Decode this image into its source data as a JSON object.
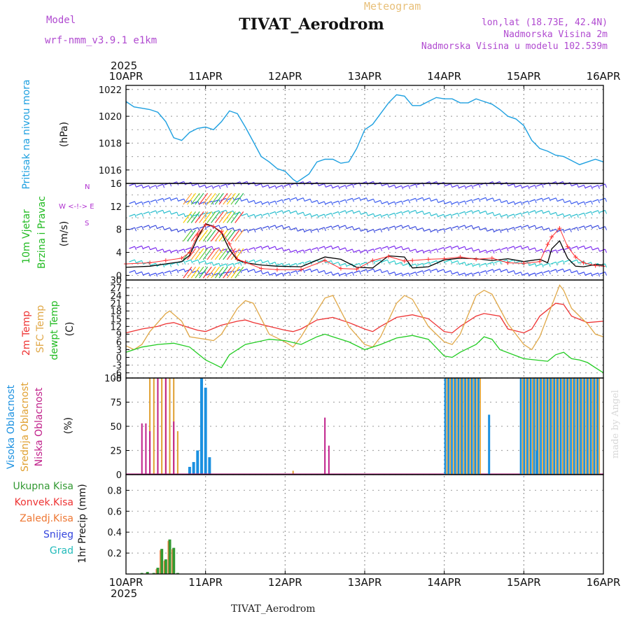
{
  "header": {
    "title": "TIVAT_Aerodrom",
    "subtitle": "Meteogram",
    "model_label": "Model",
    "model_name": "wrf-nmm_v3.9.1 e1km",
    "lonlat": "lon,lat (18.73E, 42.4N)",
    "elevation": "Nadmorska Visina 2m",
    "model_elevation": "Nadmorska Visina u modelu 102.539m",
    "footer": "TIVAT_Aerodrom",
    "credit": "made by Angel"
  },
  "time_axis": {
    "year": "2025",
    "labels": [
      "10APR",
      "11APR",
      "12APR",
      "13APR",
      "14APR",
      "15APR",
      "16APR"
    ]
  },
  "colors": {
    "pressure": "#1ea0e0",
    "wind_speed": "#000000",
    "gust": "#ff3030",
    "temp2m": "#ee3333",
    "sfc_temp": "#e0a848",
    "dewpoint": "#22cc22",
    "cloud_high": "#1a90e0",
    "cloud_mid": "#e0a030",
    "cloud_low": "#c0208a",
    "precip_total": "#339933",
    "precip_conv": "#ee3333",
    "precip_frozen": "#ee7733",
    "snow": "#3344dd",
    "hail": "#22bbbb",
    "ylabel_purple": "#b030d0"
  },
  "panels": {
    "pressure": {
      "labels": [
        "Pritisak na nivou mora"
      ],
      "unit": "(hPa)",
      "ticks": [
        "1016",
        "1018",
        "1020",
        "1022"
      ]
    },
    "wind": {
      "labels": [
        "10m Vjetar",
        "Brzina i Pravac"
      ],
      "unit": "(m/s)",
      "ticks": [
        "0",
        "4",
        "8",
        "12",
        "16"
      ],
      "compass": "W <-!-> E",
      "compass_n": "N",
      "compass_s": "S"
    },
    "temperature": {
      "labels": [
        "2m Temp",
        "SFC Temp",
        "dewpt Temp"
      ],
      "unit": "(C)",
      "ticks": [
        "-8",
        "-6",
        "-3",
        "0",
        "3",
        "6",
        "9",
        "12",
        "15",
        "18",
        "21",
        "24",
        "27",
        "30"
      ]
    },
    "cloud": {
      "labels": [
        "Visoka Oblacnost",
        "Srednja Oblacnost",
        "Niska Oblacnost"
      ],
      "unit": "(%)",
      "ticks": [
        "0",
        "25",
        "50",
        "75",
        "100"
      ]
    },
    "precip": {
      "legend": [
        "Ukupna Kisa",
        "Konvek.Kisa",
        "Zaledj.Kisa",
        "Snijeg",
        "Grad"
      ],
      "unit": "1hr Precip (mm)",
      "ticks": [
        "0.2",
        "0.4",
        "0.6",
        "0.8"
      ]
    }
  },
  "chart_data": [
    {
      "type": "line",
      "title": "Pritisak na nivou mora",
      "ylabel": "(hPa)",
      "xlim": [
        0,
        6
      ],
      "ylim": [
        1015,
        1022.3
      ],
      "x": [
        0,
        0.1,
        0.2,
        0.3,
        0.4,
        0.5,
        0.6,
        0.7,
        0.8,
        0.9,
        1.0,
        1.1,
        1.2,
        1.3,
        1.4,
        1.5,
        1.6,
        1.7,
        1.8,
        1.9,
        2.0,
        2.1,
        2.15,
        2.3,
        2.4,
        2.5,
        2.6,
        2.7,
        2.8,
        2.9,
        3.0,
        3.1,
        3.2,
        3.3,
        3.4,
        3.5,
        3.6,
        3.7,
        3.8,
        3.9,
        4.0,
        4.1,
        4.2,
        4.3,
        4.4,
        4.5,
        4.6,
        4.7,
        4.8,
        4.9,
        5.0,
        5.1,
        5.2,
        5.3,
        5.4,
        5.5,
        5.6,
        5.7,
        5.8,
        5.9,
        6.0
      ],
      "y": [
        1021.1,
        1020.7,
        1020.6,
        1020.5,
        1020.3,
        1019.6,
        1018.4,
        1018.2,
        1018.8,
        1019.1,
        1019.2,
        1019.0,
        1019.6,
        1020.4,
        1020.2,
        1019.2,
        1018.1,
        1017.0,
        1016.6,
        1016.1,
        1015.9,
        1015.3,
        1015.1,
        1015.7,
        1016.6,
        1016.8,
        1016.8,
        1016.5,
        1016.6,
        1017.6,
        1019.0,
        1019.4,
        1020.2,
        1021.0,
        1021.6,
        1021.5,
        1020.8,
        1020.8,
        1021.1,
        1021.4,
        1021.3,
        1021.3,
        1021.0,
        1021.0,
        1021.3,
        1021.1,
        1020.9,
        1020.5,
        1020.0,
        1019.8,
        1019.3,
        1018.2,
        1017.6,
        1017.4,
        1017.1,
        1017.0,
        1016.7,
        1016.4,
        1016.6,
        1016.8,
        1016.6
      ]
    },
    {
      "type": "line",
      "title": "10m Vjetar Brzina i Pravac",
      "ylabel": "(m/s)",
      "xlim": [
        0,
        6
      ],
      "ylim": [
        -0.8,
        16
      ],
      "series": [
        {
          "name": "speed",
          "x": [
            0,
            0.3,
            0.5,
            0.7,
            0.8,
            0.9,
            1.0,
            1.1,
            1.2,
            1.3,
            1.4,
            1.5,
            1.7,
            1.9,
            2.2,
            2.5,
            2.7,
            2.9,
            3.1,
            3.3,
            3.5,
            3.6,
            3.8,
            4.0,
            4.2,
            4.4,
            4.6,
            4.8,
            5.0,
            5.2,
            5.3,
            5.35,
            5.45,
            5.55,
            5.65,
            5.75,
            5.9,
            6.0
          ],
          "y": [
            1.4,
            1.6,
            2.0,
            2.4,
            3.5,
            6.5,
            9.0,
            8.5,
            7.4,
            4.5,
            2.7,
            2.2,
            1.8,
            1.6,
            1.5,
            3.2,
            2.8,
            1.4,
            1.3,
            3.4,
            3.2,
            1.3,
            1.5,
            2.7,
            3.0,
            2.9,
            2.6,
            2.9,
            2.4,
            2.8,
            2.2,
            4.6,
            6.0,
            3.0,
            1.6,
            1.5,
            1.9,
            1.8
          ]
        },
        {
          "name": "gust",
          "x": [
            0,
            0.3,
            0.5,
            0.7,
            0.8,
            0.9,
            1.0,
            1.1,
            1.2,
            1.3,
            1.4,
            1.5,
            1.7,
            1.9,
            2.2,
            2.5,
            2.7,
            2.9,
            3.1,
            3.3,
            3.5,
            3.6,
            3.8,
            4.0,
            4.2,
            4.4,
            4.6,
            4.8,
            5.0,
            5.2,
            5.3,
            5.35,
            5.45,
            5.55,
            5.65,
            5.75,
            5.9,
            6.0
          ],
          "y": [
            2.0,
            2.2,
            2.6,
            3.0,
            4.0,
            7.0,
            8.8,
            8.5,
            7.6,
            5.5,
            2.8,
            2.3,
            1.2,
            1.0,
            1.0,
            2.6,
            1.2,
            1.1,
            2.6,
            3.3,
            2.5,
            2.6,
            2.8,
            2.9,
            3.2,
            2.8,
            3.0,
            2.2,
            2.1,
            2.4,
            5.4,
            6.7,
            8.2,
            5.0,
            3.2,
            2.2,
            1.7,
            1.6
          ]
        }
      ]
    },
    {
      "type": "line",
      "title": "Temperature",
      "ylabel": "(C)",
      "xlim": [
        0,
        6
      ],
      "ylim": [
        -8,
        30
      ],
      "series": [
        {
          "name": "2m Temp",
          "x": [
            0,
            0.2,
            0.4,
            0.5,
            0.6,
            0.8,
            0.9,
            1.0,
            1.2,
            1.4,
            1.5,
            1.6,
            1.8,
            2.0,
            2.1,
            2.2,
            2.4,
            2.5,
            2.6,
            2.8,
            3.0,
            3.1,
            3.2,
            3.4,
            3.6,
            3.8,
            4.0,
            4.1,
            4.2,
            4.4,
            4.5,
            4.7,
            4.8,
            5.0,
            5.1,
            5.2,
            5.4,
            5.5,
            5.6,
            5.8,
            6.0
          ],
          "y": [
            9.5,
            11.0,
            12.0,
            13.0,
            13.5,
            11.5,
            10.5,
            10.0,
            12.5,
            14.0,
            14.5,
            13.5,
            12.0,
            10.5,
            10.0,
            11.0,
            14.5,
            15.0,
            15.5,
            13.5,
            11.0,
            10.0,
            12.0,
            15.5,
            16.5,
            15.0,
            10.0,
            9.5,
            12.0,
            16.0,
            17.0,
            16.0,
            11.0,
            9.5,
            11.0,
            16.0,
            21.0,
            20.5,
            16.0,
            13.5,
            14.0
          ]
        },
        {
          "name": "SFC Temp",
          "x": [
            0,
            0.1,
            0.2,
            0.3,
            0.5,
            0.55,
            0.7,
            0.8,
            1.0,
            1.1,
            1.2,
            1.4,
            1.5,
            1.6,
            1.8,
            2.0,
            2.1,
            2.2,
            2.3,
            2.5,
            2.6,
            2.8,
            3.0,
            3.1,
            3.2,
            3.4,
            3.5,
            3.6,
            3.8,
            4.0,
            4.1,
            4.2,
            4.4,
            4.5,
            4.6,
            4.8,
            5.0,
            5.1,
            5.2,
            5.3,
            5.45,
            5.5,
            5.6,
            5.7,
            5.8,
            5.9,
            6.0
          ],
          "y": [
            4.5,
            3.0,
            5.0,
            10.0,
            17.0,
            18.0,
            14.0,
            8.0,
            7.0,
            6.5,
            9.0,
            19.0,
            22.0,
            21.0,
            9.0,
            6.0,
            4.0,
            8.0,
            13.0,
            23.0,
            24.0,
            12.0,
            5.0,
            4.0,
            8.0,
            21.0,
            24.0,
            22.5,
            12.0,
            6.0,
            5.0,
            9.0,
            24.0,
            26.0,
            24.5,
            13.0,
            5.0,
            3.0,
            8.0,
            16.0,
            28.0,
            26.0,
            19.0,
            16.0,
            13.0,
            9.0,
            8.0
          ]
        },
        {
          "name": "dewpt Temp",
          "x": [
            0,
            0.2,
            0.4,
            0.6,
            0.8,
            1.0,
            1.1,
            1.2,
            1.3,
            1.5,
            1.8,
            2.0,
            2.2,
            2.4,
            2.5,
            2.6,
            2.8,
            3.0,
            3.2,
            3.4,
            3.6,
            3.8,
            4.0,
            4.1,
            4.2,
            4.4,
            4.5,
            4.6,
            4.7,
            5.0,
            5.3,
            5.4,
            5.5,
            5.6,
            5.7,
            5.8,
            5.9,
            6.0
          ],
          "y": [
            2.0,
            4.0,
            5.0,
            5.5,
            4.0,
            -1.0,
            -2.5,
            -4.0,
            1.0,
            5.0,
            7.0,
            6.5,
            5.0,
            8.0,
            9.0,
            8.0,
            6.0,
            3.0,
            5.0,
            7.5,
            8.5,
            7.0,
            0.5,
            0.0,
            2.0,
            5.0,
            8.0,
            7.0,
            3.0,
            -0.5,
            -1.5,
            1.0,
            2.0,
            -0.5,
            -1.0,
            -2.0,
            -4.0,
            -6.0
          ]
        }
      ]
    },
    {
      "type": "bar",
      "title": "Oblacnost",
      "ylabel": "(%)",
      "xlim": [
        0,
        6
      ],
      "ylim": [
        0,
        100
      ],
      "series": [
        {
          "name": "Visoka Oblacnost",
          "x": [
            0.8,
            0.85,
            0.9,
            0.95,
            1.0,
            1.05
          ],
          "values": [
            8,
            13,
            25,
            100,
            90,
            18
          ]
        },
        {
          "name": "Srednja Oblacnost",
          "x": [
            0.3,
            0.35,
            0.4,
            0.45,
            0.5,
            0.55,
            0.6,
            0.65,
            2.1
          ],
          "values": [
            100,
            100,
            100,
            100,
            100,
            100,
            100,
            45,
            4
          ]
        },
        {
          "name": "Niska Oblacnost",
          "x": [
            0.2,
            0.25,
            0.3,
            0.4,
            0.5,
            0.6,
            2.5,
            2.55
          ],
          "values": [
            53,
            53,
            45,
            100,
            100,
            55,
            59,
            30
          ]
        }
      ],
      "blocks": [
        {
          "from": 4.0,
          "to": 4.45,
          "value": 100
        },
        {
          "from": 4.95,
          "to": 5.95,
          "value": 100
        }
      ],
      "block_dips": [
        {
          "x": 4.55,
          "value": 62
        },
        {
          "x": 5.15,
          "value": 25
        }
      ]
    },
    {
      "type": "bar",
      "title": "1hr Precip",
      "ylabel": "1hr Precip (mm)",
      "xlim": [
        0,
        6
      ],
      "ylim": [
        0,
        0.95
      ],
      "series": [
        {
          "name": "Ukupna Kisa",
          "x": [
            0.2,
            0.27,
            0.35,
            0.4,
            0.45,
            0.5,
            0.55,
            0.6,
            0.65
          ],
          "values": [
            0.01,
            0.02,
            0.01,
            0.06,
            0.24,
            0.14,
            0.33,
            0.25,
            0.01
          ]
        }
      ]
    }
  ]
}
